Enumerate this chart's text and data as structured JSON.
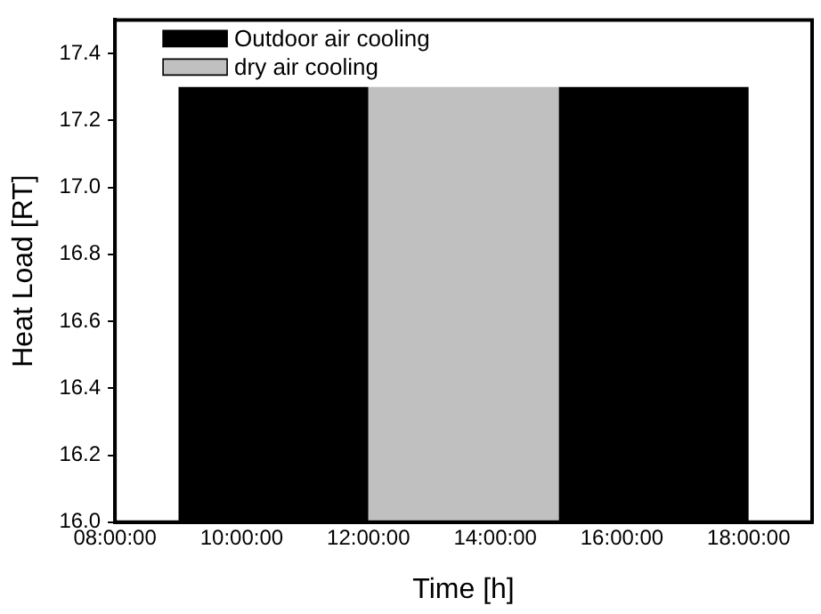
{
  "chart_data": {
    "type": "area",
    "xlabel": "Time [h]",
    "ylabel": "Heat Load [RT]",
    "xlim": [
      8,
      19
    ],
    "ylim": [
      16,
      17.5
    ],
    "xticks": [
      {
        "value": 8,
        "label": "08:00:00"
      },
      {
        "value": 10,
        "label": "10:00:00"
      },
      {
        "value": 12,
        "label": "12:00:00"
      },
      {
        "value": 14,
        "label": "14:00:00"
      },
      {
        "value": 16,
        "label": "16:00:00"
      },
      {
        "value": 18,
        "label": "18:00:00"
      }
    ],
    "yticks": [
      {
        "value": 16,
        "label": "16.0"
      },
      {
        "value": 16.2,
        "label": "16.2"
      },
      {
        "value": 16.4,
        "label": "16.4"
      },
      {
        "value": 16.6,
        "label": "16.6"
      },
      {
        "value": 16.8,
        "label": "16.8"
      },
      {
        "value": 17,
        "label": "17.0"
      },
      {
        "value": 17.2,
        "label": "17.2"
      },
      {
        "value": 17.4,
        "label": "17.4"
      }
    ],
    "legend": "top left",
    "series": [
      {
        "name": "Outdoor air cooling",
        "color": "#000000",
        "x": [
          9,
          12,
          13.5,
          15,
          18
        ],
        "values": [
          17.3,
          17.3,
          null,
          17.3,
          17.3
        ]
      },
      {
        "name": "dry air cooling",
        "color": "#c0c0c0",
        "x": [
          12,
          15
        ],
        "values": [
          17.3,
          17.3
        ]
      }
    ]
  }
}
